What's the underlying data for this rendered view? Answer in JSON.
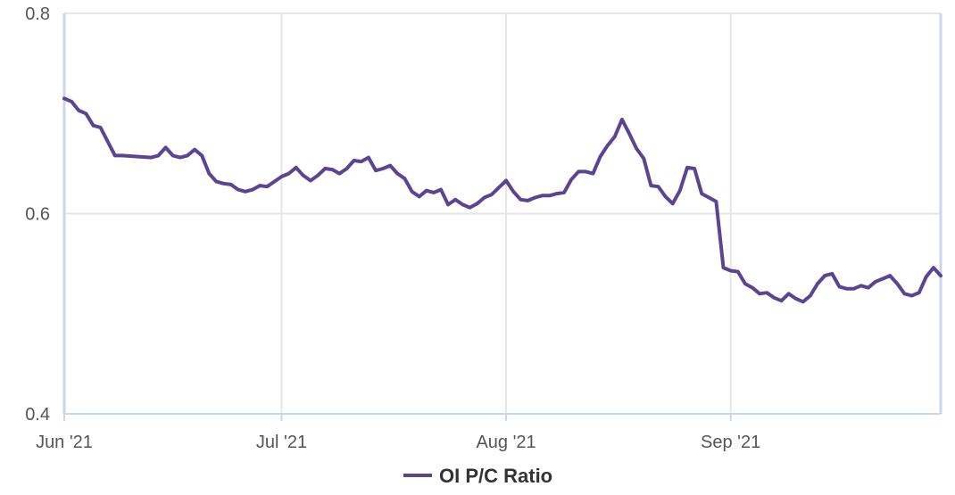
{
  "chart_data": {
    "type": "line",
    "title": "",
    "xlabel": "",
    "ylabel": "",
    "x_range": [
      "2021-06-01",
      "2021-09-30"
    ],
    "ylim": [
      0.4,
      0.8
    ],
    "y_ticks": [
      0.4,
      0.6,
      0.8
    ],
    "y_tick_labels": [
      "0.4",
      "0.6",
      "0.8"
    ],
    "x_ticks": [
      "2021-06-01",
      "2021-07-01",
      "2021-08-01",
      "2021-09-01"
    ],
    "x_tick_labels": [
      "Jun '21",
      "Jul '21",
      "Aug '21",
      "Sep '21"
    ],
    "grid": true,
    "legend_position": "bottom-center",
    "series": [
      {
        "name": "OI P/C Ratio",
        "color": "#5b4593",
        "points": [
          [
            "2021-06-01",
            0.715
          ],
          [
            "2021-06-02",
            0.712
          ],
          [
            "2021-06-03",
            0.703
          ],
          [
            "2021-06-04",
            0.7
          ],
          [
            "2021-06-05",
            0.688
          ],
          [
            "2021-06-06",
            0.686
          ],
          [
            "2021-06-08",
            0.658
          ],
          [
            "2021-06-09",
            0.658
          ],
          [
            "2021-06-11",
            0.657
          ],
          [
            "2021-06-13",
            0.656
          ],
          [
            "2021-06-14",
            0.658
          ],
          [
            "2021-06-15",
            0.666
          ],
          [
            "2021-06-16",
            0.658
          ],
          [
            "2021-06-17",
            0.656
          ],
          [
            "2021-06-18",
            0.658
          ],
          [
            "2021-06-19",
            0.664
          ],
          [
            "2021-06-20",
            0.658
          ],
          [
            "2021-06-21",
            0.64
          ],
          [
            "2021-06-22",
            0.632
          ],
          [
            "2021-06-23",
            0.63
          ],
          [
            "2021-06-24",
            0.629
          ],
          [
            "2021-06-25",
            0.624
          ],
          [
            "2021-06-26",
            0.622
          ],
          [
            "2021-06-27",
            0.624
          ],
          [
            "2021-06-28",
            0.628
          ],
          [
            "2021-06-29",
            0.627
          ],
          [
            "2021-06-30",
            0.632
          ],
          [
            "2021-07-01",
            0.637
          ],
          [
            "2021-07-02",
            0.64
          ],
          [
            "2021-07-03",
            0.646
          ],
          [
            "2021-07-04",
            0.638
          ],
          [
            "2021-07-05",
            0.633
          ],
          [
            "2021-07-06",
            0.638
          ],
          [
            "2021-07-07",
            0.645
          ],
          [
            "2021-07-08",
            0.644
          ],
          [
            "2021-07-09",
            0.64
          ],
          [
            "2021-07-10",
            0.645
          ],
          [
            "2021-07-11",
            0.653
          ],
          [
            "2021-07-12",
            0.652
          ],
          [
            "2021-07-13",
            0.656
          ],
          [
            "2021-07-14",
            0.643
          ],
          [
            "2021-07-15",
            0.645
          ],
          [
            "2021-07-16",
            0.648
          ],
          [
            "2021-07-17",
            0.64
          ],
          [
            "2021-07-18",
            0.635
          ],
          [
            "2021-07-19",
            0.622
          ],
          [
            "2021-07-20",
            0.617
          ],
          [
            "2021-07-21",
            0.623
          ],
          [
            "2021-07-22",
            0.621
          ],
          [
            "2021-07-23",
            0.624
          ],
          [
            "2021-07-24",
            0.609
          ],
          [
            "2021-07-25",
            0.614
          ],
          [
            "2021-07-26",
            0.609
          ],
          [
            "2021-07-27",
            0.606
          ],
          [
            "2021-07-28",
            0.61
          ],
          [
            "2021-07-29",
            0.616
          ],
          [
            "2021-07-30",
            0.619
          ],
          [
            "2021-07-31",
            0.626
          ],
          [
            "2021-08-01",
            0.633
          ],
          [
            "2021-08-02",
            0.622
          ],
          [
            "2021-08-03",
            0.614
          ],
          [
            "2021-08-04",
            0.613
          ],
          [
            "2021-08-05",
            0.616
          ],
          [
            "2021-08-06",
            0.618
          ],
          [
            "2021-08-07",
            0.618
          ],
          [
            "2021-08-08",
            0.62
          ],
          [
            "2021-08-09",
            0.621
          ],
          [
            "2021-08-10",
            0.634
          ],
          [
            "2021-08-11",
            0.642
          ],
          [
            "2021-08-12",
            0.642
          ],
          [
            "2021-08-13",
            0.64
          ],
          [
            "2021-08-14",
            0.657
          ],
          [
            "2021-08-15",
            0.668
          ],
          [
            "2021-08-16",
            0.677
          ],
          [
            "2021-08-17",
            0.694
          ],
          [
            "2021-08-18",
            0.68
          ],
          [
            "2021-08-19",
            0.665
          ],
          [
            "2021-08-20",
            0.655
          ],
          [
            "2021-08-21",
            0.628
          ],
          [
            "2021-08-22",
            0.627
          ],
          [
            "2021-08-23",
            0.617
          ],
          [
            "2021-08-24",
            0.61
          ],
          [
            "2021-08-25",
            0.623
          ],
          [
            "2021-08-26",
            0.646
          ],
          [
            "2021-08-27",
            0.645
          ],
          [
            "2021-08-28",
            0.62
          ],
          [
            "2021-08-29",
            0.616
          ],
          [
            "2021-08-30",
            0.612
          ],
          [
            "2021-08-31",
            0.546
          ],
          [
            "2021-09-01",
            0.543
          ],
          [
            "2021-09-02",
            0.542
          ],
          [
            "2021-09-03",
            0.53
          ],
          [
            "2021-09-04",
            0.526
          ],
          [
            "2021-09-05",
            0.52
          ],
          [
            "2021-09-06",
            0.521
          ],
          [
            "2021-09-07",
            0.516
          ],
          [
            "2021-09-08",
            0.513
          ],
          [
            "2021-09-09",
            0.52
          ],
          [
            "2021-09-10",
            0.515
          ],
          [
            "2021-09-11",
            0.512
          ],
          [
            "2021-09-12",
            0.518
          ],
          [
            "2021-09-13",
            0.53
          ],
          [
            "2021-09-14",
            0.538
          ],
          [
            "2021-09-15",
            0.54
          ],
          [
            "2021-09-16",
            0.527
          ],
          [
            "2021-09-17",
            0.525
          ],
          [
            "2021-09-18",
            0.525
          ],
          [
            "2021-09-19",
            0.528
          ],
          [
            "2021-09-20",
            0.526
          ],
          [
            "2021-09-21",
            0.532
          ],
          [
            "2021-09-22",
            0.535
          ],
          [
            "2021-09-23",
            0.538
          ],
          [
            "2021-09-24",
            0.53
          ],
          [
            "2021-09-25",
            0.52
          ],
          [
            "2021-09-26",
            0.518
          ],
          [
            "2021-09-27",
            0.521
          ],
          [
            "2021-09-28",
            0.537
          ],
          [
            "2021-09-29",
            0.546
          ],
          [
            "2021-09-30",
            0.538
          ]
        ]
      }
    ]
  }
}
